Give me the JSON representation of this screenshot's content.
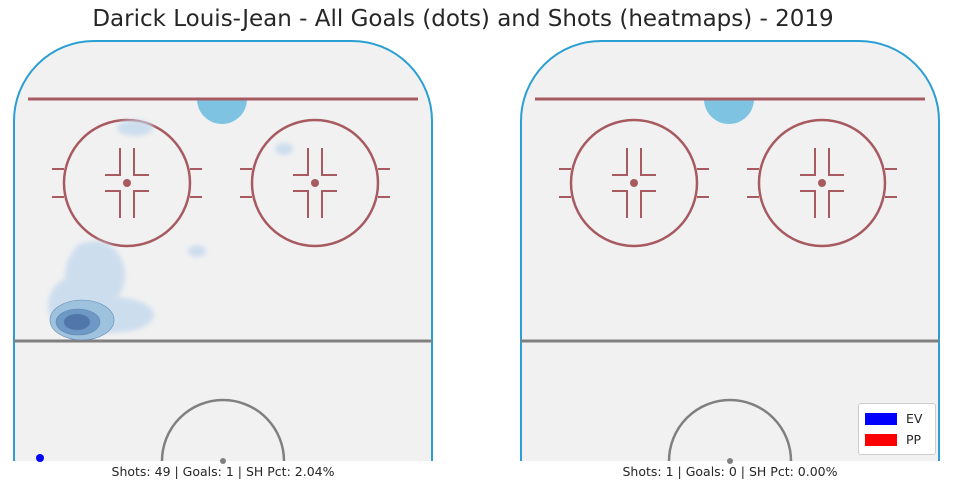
{
  "chart_data": {
    "type": "heatmap",
    "title": "Darick Louis-Jean - All Goals (dots) and Shots (heatmaps) - 2019",
    "legend": {
      "placement": "bottom-right",
      "entries": [
        {
          "label": "EV",
          "color": "#0000ff"
        },
        {
          "label": "PP",
          "color": "#ff0000"
        }
      ]
    },
    "panels": [
      {
        "caption": "Shots: 49 | Goals: 1 | SH Pct: 2.04%",
        "shots": 49,
        "goals": 1,
        "goal_dots": [
          {
            "strength": "EV"
          }
        ],
        "heatmap": true
      },
      {
        "caption": "Shots: 1 | Goals: 0 | SH Pct: 0.00%",
        "shots": 1,
        "goals": 0,
        "goal_dots": [],
        "heatmap": false
      }
    ],
    "colors": {
      "board": "#2b9fd3",
      "ice": "#f1f1f1",
      "goal_line": "#a75a5f",
      "faceoff": "#a75a5f",
      "crease": "#7ec4e2",
      "blue_line": "#808080",
      "center_circle": "#808080",
      "heat_low": "#c9dcee",
      "heat_mid": "#98bfdc",
      "heat_high": "#6a95c3",
      "heat_peak": "#4e74a8",
      "goal_dot": "#0000ff"
    }
  }
}
